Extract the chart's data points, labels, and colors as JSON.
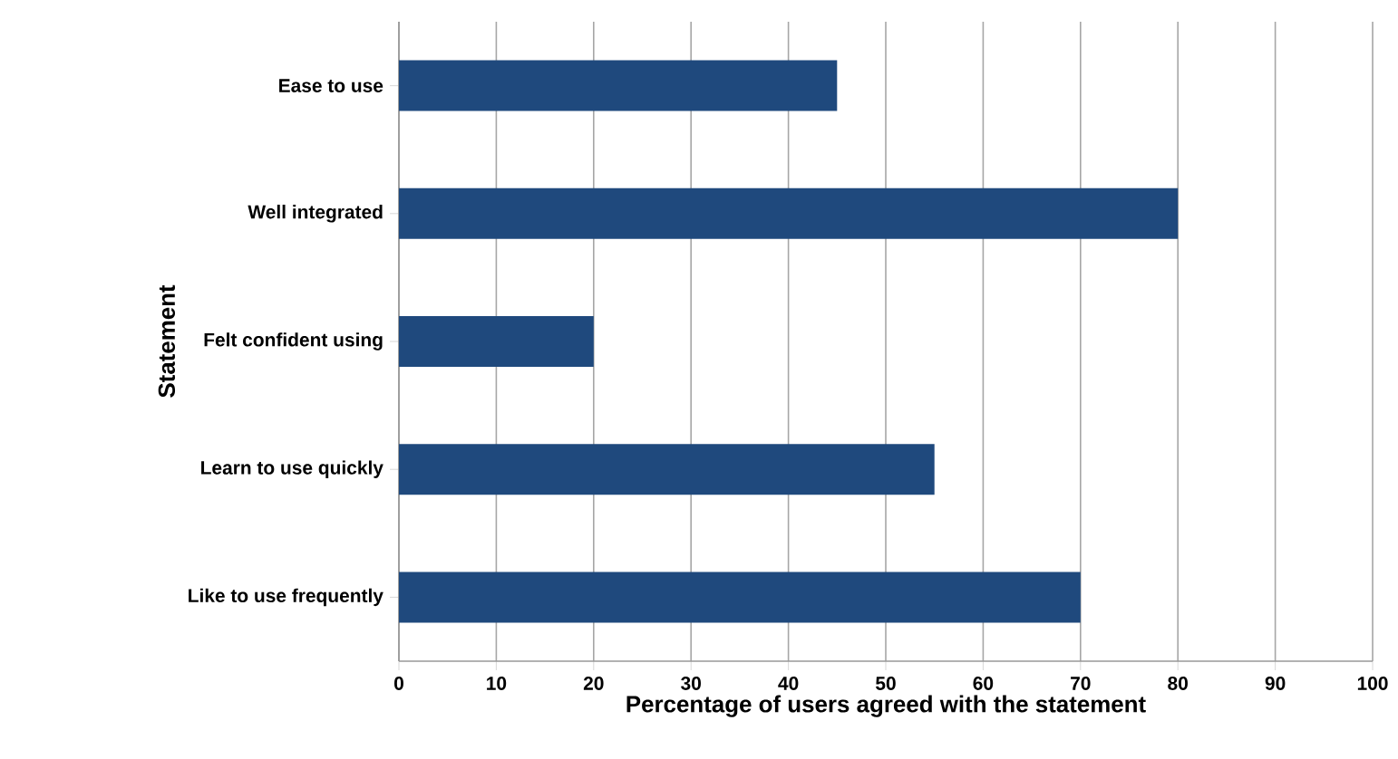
{
  "chart_data": {
    "type": "bar",
    "orientation": "horizontal",
    "xlabel": "Percentage of users agreed with the statement",
    "ylabel": "Statement",
    "categories": [
      "Ease to use",
      "Well integrated",
      "Felt confident using",
      "Learn to use quickly",
      "Like to use frequently"
    ],
    "values": [
      45,
      80,
      20,
      55,
      70
    ],
    "color": "#1f497d",
    "xlim": [
      0,
      100
    ],
    "xticks": [
      0,
      10,
      20,
      30,
      40,
      50,
      60,
      70,
      80,
      90,
      100
    ],
    "grid": "x"
  }
}
